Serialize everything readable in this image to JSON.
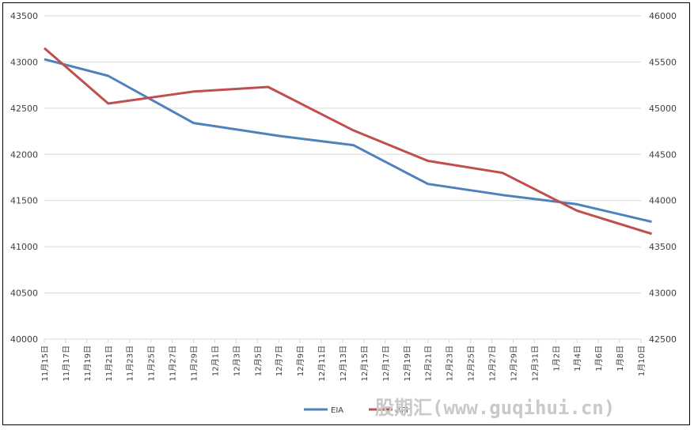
{
  "chart_data": {
    "type": "line",
    "title": "",
    "xlabel": "",
    "ylabel": "",
    "categories": [
      "11月15日",
      "11月17日",
      "11月19日",
      "11月21日",
      "11月23日",
      "11月25日",
      "11月27日",
      "11月29日",
      "12月1日",
      "12月3日",
      "12月5日",
      "12月7日",
      "12月9日",
      "12月11日",
      "12月13日",
      "12月15日",
      "12月17日",
      "12月19日",
      "12月21日",
      "12月23日",
      "12月25日",
      "12月27日",
      "12月29日",
      "12月31日",
      "1月2日",
      "1月4日",
      "1月6日",
      "1月8日",
      "1月10日"
    ],
    "y_left": {
      "min": 40000,
      "max": 43500,
      "step": 500,
      "ticks": [
        "40000",
        "40500",
        "41000",
        "41500",
        "42000",
        "42500",
        "43000",
        "43500"
      ]
    },
    "y_right": {
      "min": 42500,
      "max": 46000,
      "step": 500,
      "ticks": [
        "42500",
        "43000",
        "43500",
        "44000",
        "44500",
        "45000",
        "45500",
        "46000"
      ]
    },
    "grid": true,
    "legend_position": "bottom-right",
    "series": [
      {
        "name": "EIA",
        "axis": "left",
        "color": "#4f81bd",
        "points": [
          [
            "11月15日",
            43030
          ],
          [
            "11月21日",
            42850
          ],
          [
            "11月29日",
            42340
          ],
          [
            "12月7日",
            42200
          ],
          [
            "12月14日",
            42100
          ],
          [
            "12月21日",
            41680
          ],
          [
            "12月28日",
            41560
          ],
          [
            "1月4日",
            41460
          ],
          [
            "1月11日",
            41270
          ]
        ]
      },
      {
        "name": "API",
        "axis": "right",
        "color": "#c0504d",
        "points": [
          [
            "11月15日",
            45650
          ],
          [
            "11月21日",
            45050
          ],
          [
            "11月29日",
            45180
          ],
          [
            "12月6日",
            45230
          ],
          [
            "12月14日",
            44760
          ],
          [
            "12月21日",
            44430
          ],
          [
            "12月28日",
            44300
          ],
          [
            "1月4日",
            43890
          ],
          [
            "1月11日",
            43640
          ]
        ]
      }
    ]
  },
  "watermark": "股期汇(www.guqihui.cn)"
}
